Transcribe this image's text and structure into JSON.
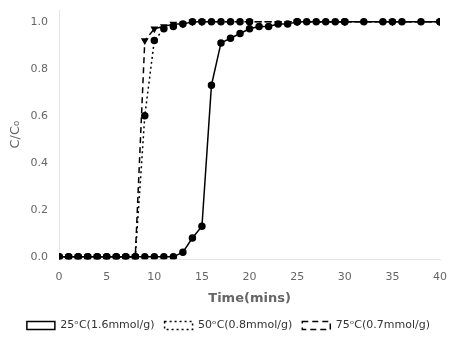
{
  "chart_data": {
    "type": "line",
    "xlabel": "Time(mins)",
    "ylabel": "C/C₀",
    "series": [
      {
        "name": "25ᵒC(1.6mmol/g)",
        "color": "black",
        "line_style": "solid",
        "marker": "circle",
        "x": [
          0,
          1,
          2,
          3,
          4,
          5,
          6,
          7,
          8,
          9,
          10,
          11,
          12,
          13,
          14,
          15,
          16,
          17,
          18,
          19,
          20,
          21,
          22,
          23,
          24,
          25,
          26,
          27,
          28,
          29,
          30,
          32,
          34,
          36,
          38,
          40
        ],
        "values": [
          0.0,
          0.0,
          0.0,
          0.0,
          0.0,
          0.0,
          0.0,
          0.0,
          0.0,
          0.0,
          0.0,
          0.0,
          0.0,
          0.02,
          0.08,
          0.13,
          0.73,
          0.91,
          0.93,
          0.95,
          0.97,
          0.98,
          0.98,
          0.99,
          0.99,
          1.0,
          1.0,
          1.0,
          1.0,
          1.0,
          1.0,
          1.0,
          1.0,
          1.0,
          1.0,
          1.0
        ]
      },
      {
        "name": "50ᵒC(0.8mmol/g)",
        "color": "black",
        "line_style": "dotted",
        "marker": "circle",
        "x": [
          0,
          1,
          2,
          3,
          4,
          5,
          6,
          7,
          8,
          9,
          10,
          11,
          12,
          13,
          14,
          15,
          16,
          17,
          18,
          19,
          20,
          25,
          30,
          35,
          40
        ],
        "values": [
          0.0,
          0.0,
          0.0,
          0.0,
          0.0,
          0.0,
          0.0,
          0.0,
          0.0,
          0.6,
          0.92,
          0.97,
          0.98,
          0.99,
          1.0,
          1.0,
          1.0,
          1.0,
          1.0,
          1.0,
          1.0,
          1.0,
          1.0,
          1.0,
          1.0
        ]
      },
      {
        "name": "75ᵒC(0.7mmol/g)",
        "color": "black",
        "line_style": "dashed",
        "marker": "triangle_down",
        "x": [
          0,
          1,
          2,
          3,
          4,
          5,
          6,
          7,
          8,
          9,
          10,
          11,
          12,
          13,
          14,
          15,
          20,
          25,
          30,
          35,
          40
        ],
        "values": [
          0.0,
          0.0,
          0.0,
          0.0,
          0.0,
          0.0,
          0.0,
          0.0,
          0.0,
          0.92,
          0.97,
          0.98,
          0.99,
          0.99,
          1.0,
          1.0,
          1.0,
          1.0,
          1.0,
          1.0,
          1.0
        ]
      }
    ],
    "xlim": [
      0,
      40
    ],
    "ylim": [
      -0.01,
      1.05
    ],
    "xticks": [
      0,
      5,
      10,
      15,
      20,
      25,
      30,
      35,
      40
    ],
    "yticks": [
      {
        "value": 0.0,
        "label": "0.0"
      },
      0.2,
      0.4,
      0.6,
      0.8,
      {
        "value": 1.0,
        "label": "1.0"
      }
    ],
    "grid": false,
    "legend": "lower right"
  }
}
